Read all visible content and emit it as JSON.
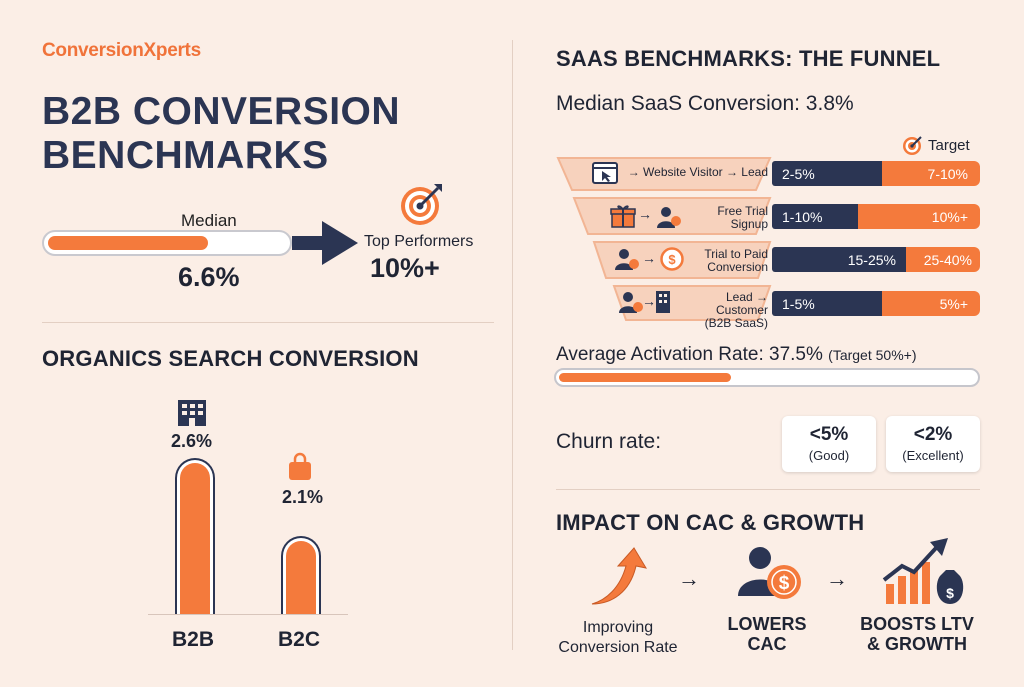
{
  "brand": "ConversionXperts",
  "main_title_line1": "B2B CONVERSION",
  "main_title_line2": "BENCHMARKS",
  "median": {
    "label": "Median",
    "value": "6.6%",
    "fill_fraction": 0.66
  },
  "top_performers": {
    "label": "Top Performers",
    "value": "10%+"
  },
  "organic": {
    "title": "ORGANICS SEARCH CONVERSION",
    "bars": [
      {
        "category": "B2B",
        "value_label": "2.6%",
        "value": 2.6,
        "icon": "office-building-icon"
      },
      {
        "category": "B2C",
        "value_label": "2.1%",
        "value": 2.1,
        "icon": "shopping-bag-icon"
      }
    ]
  },
  "saas": {
    "title": "SAAS BENCHMARKS: THE FUNNEL",
    "median_conversion": "Median SaaS Conversion: 3.8%",
    "target_legend": "Target",
    "funnel": [
      {
        "label_line1": "→ Website Visitor → Lead",
        "label_line2": "",
        "median": "2-5%",
        "target": "7-10%",
        "icons": [
          "browser-cursor-icon"
        ]
      },
      {
        "label_line1": "Free Trial",
        "label_line2": "Signup",
        "median": "1-10%",
        "target": "10%+",
        "icons": [
          "gift-icon",
          "user-icon"
        ]
      },
      {
        "label_line1": "Trial to Paid",
        "label_line2": "Conversion",
        "median": "15-25%",
        "target": "25-40%",
        "icons": [
          "user-money-icon",
          "dollar-coin-icon"
        ]
      },
      {
        "label_line1": "Lead → Customer",
        "label_line2": "(B2B SaaS)",
        "median": "1-5%",
        "target": "5%+",
        "icons": [
          "user-money-icon",
          "office-building-icon"
        ]
      }
    ],
    "activation": {
      "label": "Average Activation Rate: 37.5%",
      "note": "(Target 50%+)",
      "fraction": 0.375
    },
    "churn": {
      "label": "Churn rate:",
      "cards": [
        {
          "value": "<5%",
          "note": "(Good)"
        },
        {
          "value": "<2%",
          "note": "(Excellent)"
        }
      ]
    }
  },
  "impact": {
    "title": "IMPACT ON CAC & GROWTH",
    "steps": [
      {
        "line1": "Improving",
        "line2": "Conversion Rate",
        "icon": "curved-up-arrow-icon"
      },
      {
        "line1": "LOWERS",
        "line2": "CAC",
        "icon": "user-dollar-icon"
      },
      {
        "line1": "BOOSTS LTV",
        "line2": "& GROWTH",
        "icon": "growth-chart-money-icon"
      }
    ],
    "arrow": "→"
  },
  "colors": {
    "navy": "#2b3553",
    "orange": "#f47a3c",
    "background": "#fbeee6"
  }
}
